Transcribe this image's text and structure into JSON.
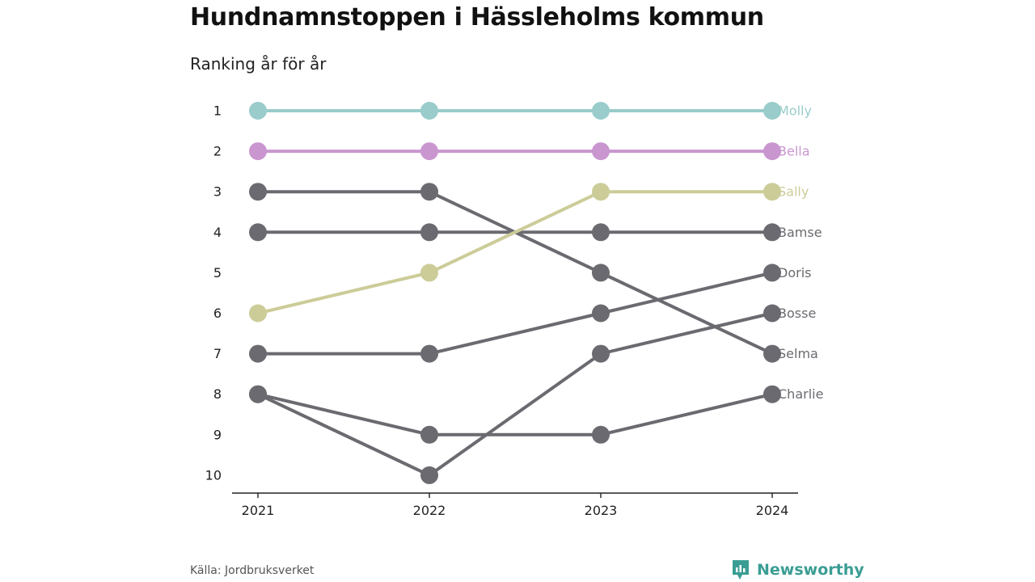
{
  "title": "Hundnamnstoppen i Hässleholms kommun",
  "subtitle": "Ranking år för år",
  "source": "Källa: Jordbruksverket",
  "brand": {
    "name": "Newsworthy",
    "icon": "newsworthy-logo-icon",
    "color": "#3a9d94"
  },
  "chart_data": {
    "type": "line",
    "chart_kind": "bump",
    "x": [
      "2021",
      "2022",
      "2023",
      "2024"
    ],
    "y_ticks": [
      "1",
      "2",
      "3",
      "4",
      "5",
      "6",
      "7",
      "8",
      "9",
      "10"
    ],
    "ylim": [
      1,
      10
    ],
    "y_inverted": true,
    "grid": false,
    "series": [
      {
        "name": "Molly",
        "values": [
          1,
          1,
          1,
          1
        ],
        "color": "#99cccb"
      },
      {
        "name": "Bella",
        "values": [
          2,
          2,
          2,
          2
        ],
        "color": "#c996cf"
      },
      {
        "name": "Sally",
        "values": [
          6,
          5,
          3,
          3
        ],
        "color": "#cccc99"
      },
      {
        "name": "Bamse",
        "values": [
          4,
          4,
          4,
          4
        ],
        "color": "#6b6a70"
      },
      {
        "name": "Doris",
        "values": [
          7,
          7,
          6,
          5
        ],
        "color": "#6b6a70"
      },
      {
        "name": "Bosse",
        "values": [
          8,
          10,
          7,
          6
        ],
        "color": "#6b6a70"
      },
      {
        "name": "Selma",
        "values": [
          3,
          3,
          5,
          7
        ],
        "color": "#6b6a70"
      },
      {
        "name": "Charlie",
        "values": [
          8,
          9,
          9,
          8
        ],
        "color": "#6b6a70"
      }
    ]
  }
}
